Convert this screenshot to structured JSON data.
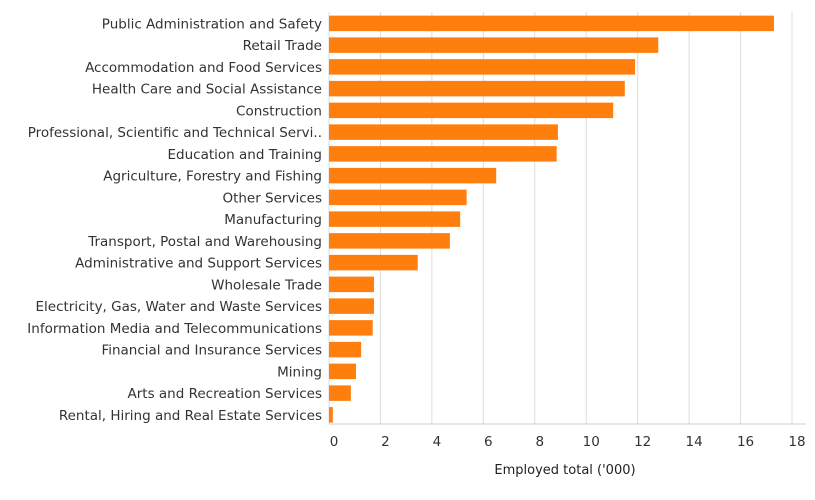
{
  "chart_data": {
    "type": "bar",
    "orientation": "horizontal",
    "categories": [
      "Public Administration and Safety",
      "Retail Trade",
      "Accommodation and Food Services",
      "Health Care and Social Assistance",
      "Construction",
      "Professional, Scientific and Technical Servi..",
      "Education and Training",
      "Agriculture, Forestry and Fishing",
      "Other Services",
      "Manufacturing",
      "Transport, Postal and Warehousing",
      "Administrative and Support Services",
      "Wholesale Trade",
      "Electricity, Gas, Water and Waste Services",
      "Information Media and Telecommunications",
      "Financial and Insurance Services",
      "Mining",
      "Arts and Recreation Services",
      "Rental, Hiring and Real Estate Services"
    ],
    "values": [
      17.3,
      12.8,
      11.9,
      11.5,
      11.05,
      8.9,
      8.85,
      6.5,
      5.35,
      5.1,
      4.7,
      3.45,
      1.75,
      1.75,
      1.7,
      1.25,
      1.05,
      0.85,
      0.15
    ],
    "xlabel": "Employed total ('000)",
    "ylabel": "",
    "xlim": [
      0,
      18
    ],
    "xticks": [
      "0",
      "2",
      "4",
      "6",
      "8",
      "10",
      "12",
      "14",
      "16",
      "18"
    ],
    "bar_color": "#FF7F0E",
    "grid": true
  }
}
